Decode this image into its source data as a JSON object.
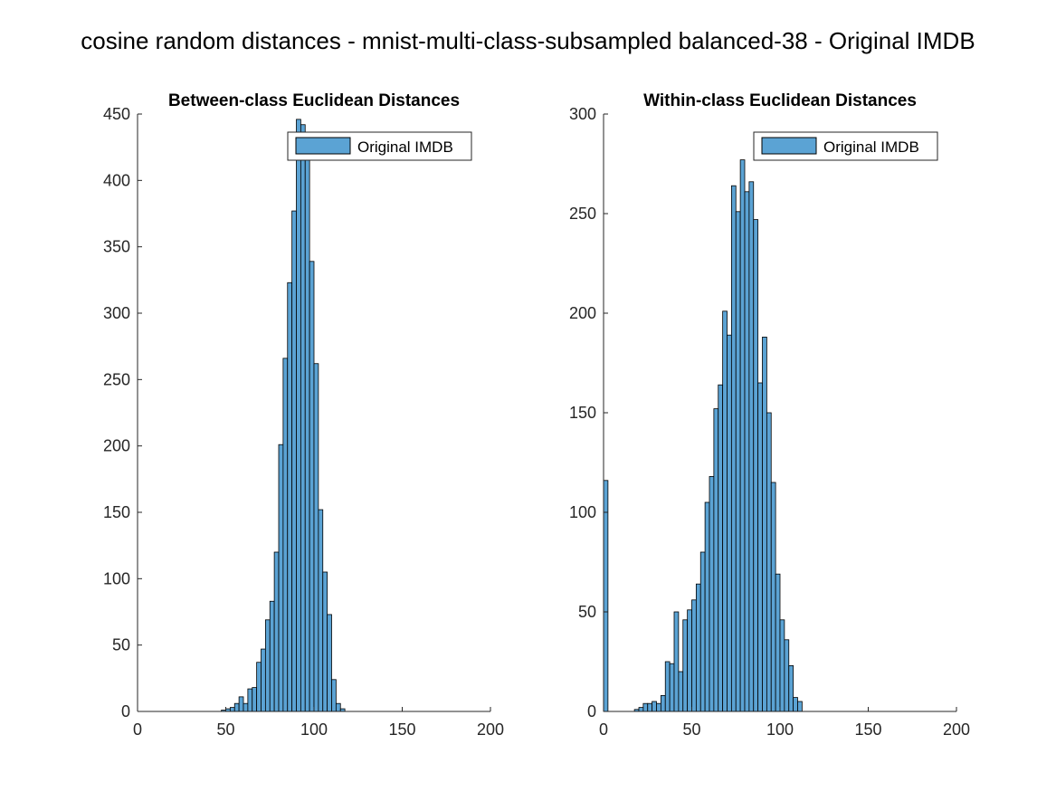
{
  "figure": {
    "title": "cosine random distances - mnist-multi-class-subsampled balanced-38 - Original IMDB"
  },
  "chart_data": [
    {
      "type": "bar",
      "title": "Between-class Euclidean Distances",
      "legend": [
        "Original IMDB"
      ],
      "legend_position": "top-right",
      "bar_color": "#5BA3D4",
      "xlim": [
        0,
        200
      ],
      "ylim": [
        0,
        450
      ],
      "xticks": [
        0,
        50,
        100,
        150,
        200
      ],
      "yticks": [
        0,
        50,
        100,
        150,
        200,
        250,
        300,
        350,
        400,
        450
      ],
      "bin_width": 2.5,
      "bin_centers": [
        48.75,
        51.25,
        53.75,
        56.25,
        58.75,
        61.25,
        63.75,
        66.25,
        68.75,
        71.25,
        73.75,
        76.25,
        78.75,
        81.25,
        83.75,
        86.25,
        88.75,
        91.25,
        93.75,
        96.25,
        98.75,
        101.25,
        103.75,
        106.25,
        108.75,
        111.25,
        113.75,
        116.25
      ],
      "values": [
        1,
        2,
        3,
        6,
        11,
        6,
        17,
        18,
        37,
        47,
        69,
        83,
        120,
        201,
        266,
        323,
        377,
        446,
        442,
        418,
        339,
        262,
        152,
        105,
        73,
        24,
        6,
        2
      ],
      "x_range_baseline": [
        0,
        180
      ]
    },
    {
      "type": "bar",
      "title": "Within-class Euclidean Distances",
      "legend": [
        "Original IMDB"
      ],
      "legend_position": "top-right",
      "bar_color": "#5BA3D4",
      "xlim": [
        0,
        200
      ],
      "ylim": [
        0,
        300
      ],
      "xticks": [
        0,
        50,
        100,
        150,
        200
      ],
      "yticks": [
        0,
        50,
        100,
        150,
        200,
        250,
        300
      ],
      "bin_width": 2.5,
      "bin_centers": [
        1.25,
        18.75,
        21.25,
        23.75,
        26.25,
        28.75,
        31.25,
        33.75,
        36.25,
        38.75,
        41.25,
        43.75,
        46.25,
        48.75,
        51.25,
        53.75,
        56.25,
        58.75,
        61.25,
        63.75,
        66.25,
        68.75,
        71.25,
        73.75,
        76.25,
        78.75,
        81.25,
        83.75,
        86.25,
        88.75,
        91.25,
        93.75,
        96.25,
        98.75,
        101.25,
        103.75,
        106.25,
        108.75,
        111.25
      ],
      "values": [
        116,
        1,
        2,
        4,
        4,
        5,
        4,
        8,
        25,
        24,
        50,
        20,
        46,
        51,
        56,
        64,
        80,
        105,
        118,
        152,
        164,
        201,
        189,
        264,
        251,
        277,
        261,
        266,
        247,
        165,
        188,
        150,
        115,
        69,
        46,
        36,
        23,
        7,
        5
      ],
      "x_range_baseline": [
        0,
        180
      ]
    }
  ]
}
